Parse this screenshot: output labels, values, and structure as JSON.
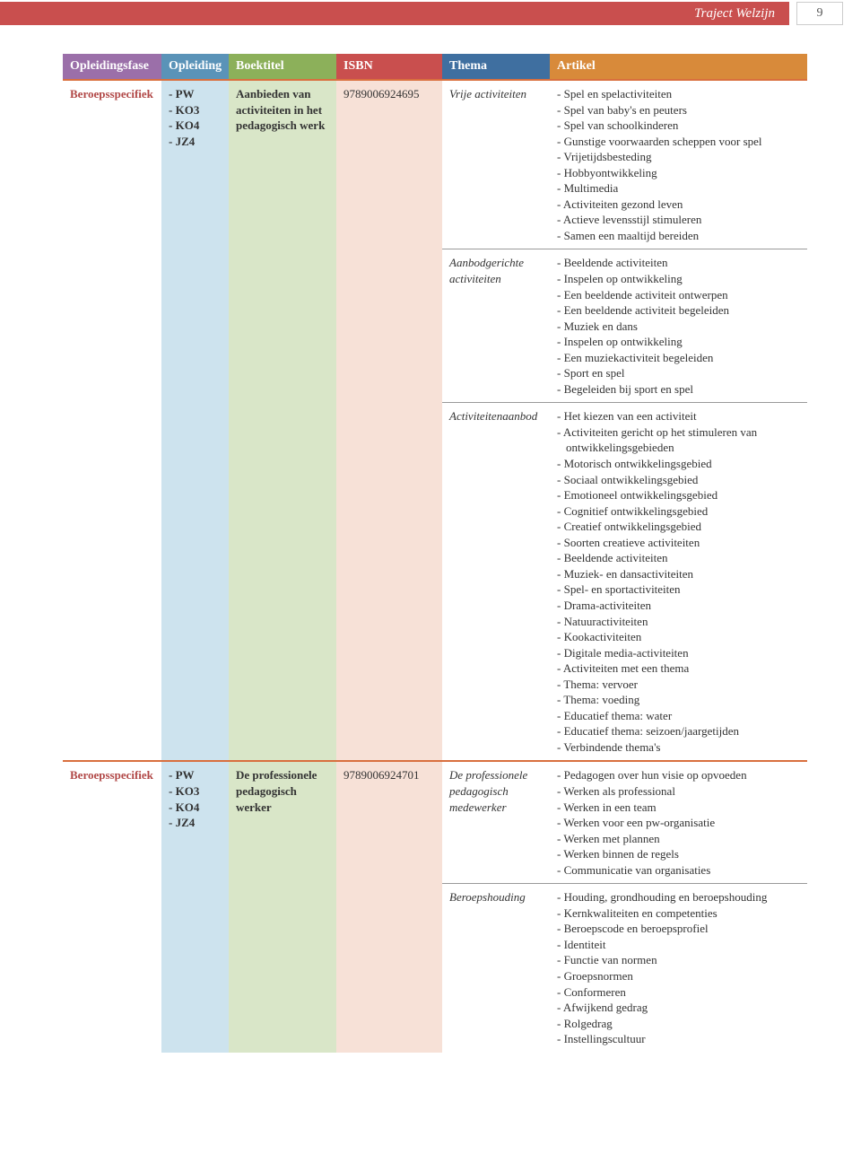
{
  "colors": {
    "header_red": "#c94f4e",
    "rule": "#d96f3e",
    "fase_text": "#b14847",
    "opl_bg": "#cde3ee",
    "boek_bg": "#d9e6c8",
    "isbn_bg": "#f7e1d7",
    "th": {
      "fase": "#9b6fa9",
      "opl": "#5a93b8",
      "boek": "#8cb05a",
      "isbn": "#c94f4e",
      "thema": "#3f6fa0",
      "art": "#d88a3a"
    }
  },
  "header": {
    "title": "Traject Welzijn",
    "page": "9"
  },
  "columns": {
    "fase": "Opleidingsfase",
    "opl": "Opleiding",
    "boek": "Boektitel",
    "isbn": "ISBN",
    "thema": "Thema",
    "art": "Artikel"
  },
  "rows": [
    {
      "fase": "Beroeps­specifiek",
      "opl": [
        "PW",
        "KO3",
        "KO4",
        "JZ4"
      ],
      "boek": "Aanbieden van activiteiten in het pedago­gisch werk",
      "isbn": "9789006924695",
      "themas": [
        {
          "thema": "Vrije activiteiten",
          "art": [
            "Spel en spelactiviteiten",
            "Spel van baby's en peuters",
            "Spel van schoolkinderen",
            "Gunstige voorwaarden scheppen voor spel",
            "Vrijetijdsbesteding",
            "Hobbyontwikkeling",
            "Multimedia",
            "Activiteiten gezond leven",
            "Actieve levensstijl stimuleren",
            "Samen een maaltijd bereiden"
          ]
        },
        {
          "thema": "Aanbodgerichte activiteiten",
          "art": [
            "Beeldende activiteiten",
            "Inspelen op ontwikkeling",
            "Een beeldende activiteit ontwerpen",
            "Een beeldende activiteit begeleiden",
            "Muziek en dans",
            "Inspelen op ontwikkeling",
            "Een muziekactiviteit begeleiden",
            "Sport en spel",
            "Begeleiden bij sport en spel"
          ]
        },
        {
          "thema": "Activiteiten­aanbod",
          "art": [
            "Het kiezen van een activiteit",
            "Activiteiten gericht op het stimuleren van ontwikkelingsgebieden",
            "Motorisch ontwikkelingsgebied",
            "Sociaal ontwikkelingsgebied",
            "Emotioneel ontwikkelingsgebied",
            "Cognitief ontwikkelingsgebied",
            "Creatief ontwikkelingsgebied",
            "Soorten creatieve activiteiten",
            "Beeldende activiteiten",
            "Muziek- en dansactiviteiten",
            "Spel- en sportactiviteiten",
            "Drama-activiteiten",
            "Natuuractiviteiten",
            "Kookactiviteiten",
            "Digitale media-activiteiten",
            "Activiteiten met een thema",
            "Thema: vervoer",
            "Thema: voeding",
            "Educatief thema: water",
            "Educatief thema: seizoen/jaargetijden",
            "Verbindende thema's"
          ]
        }
      ]
    },
    {
      "fase": "Beroeps­specifiek",
      "opl": [
        "PW",
        "KO3",
        "KO4",
        "JZ4"
      ],
      "boek": "De professionele pedagogisch werker",
      "isbn": "9789006924701",
      "themas": [
        {
          "thema": "De professionele pedagogisch medewerker",
          "art": [
            "Pedagogen over hun visie op opvoeden",
            "Werken als professional",
            "Werken in een team",
            "Werken voor een pw-organisatie",
            "Werken met plannen",
            "Werken binnen de regels",
            "Communicatie van organisaties"
          ]
        },
        {
          "thema": "Beroepshouding",
          "art": [
            "Houding, grondhouding en beroeps­houding",
            "Kernkwaliteiten en competenties",
            "Beroepscode en beroepsprofiel",
            "Identiteit",
            "Functie van normen",
            "Groepsnormen",
            "Conformeren",
            "Afwijkend gedrag",
            "Rolgedrag",
            "Instellingscultuur"
          ]
        }
      ]
    }
  ]
}
